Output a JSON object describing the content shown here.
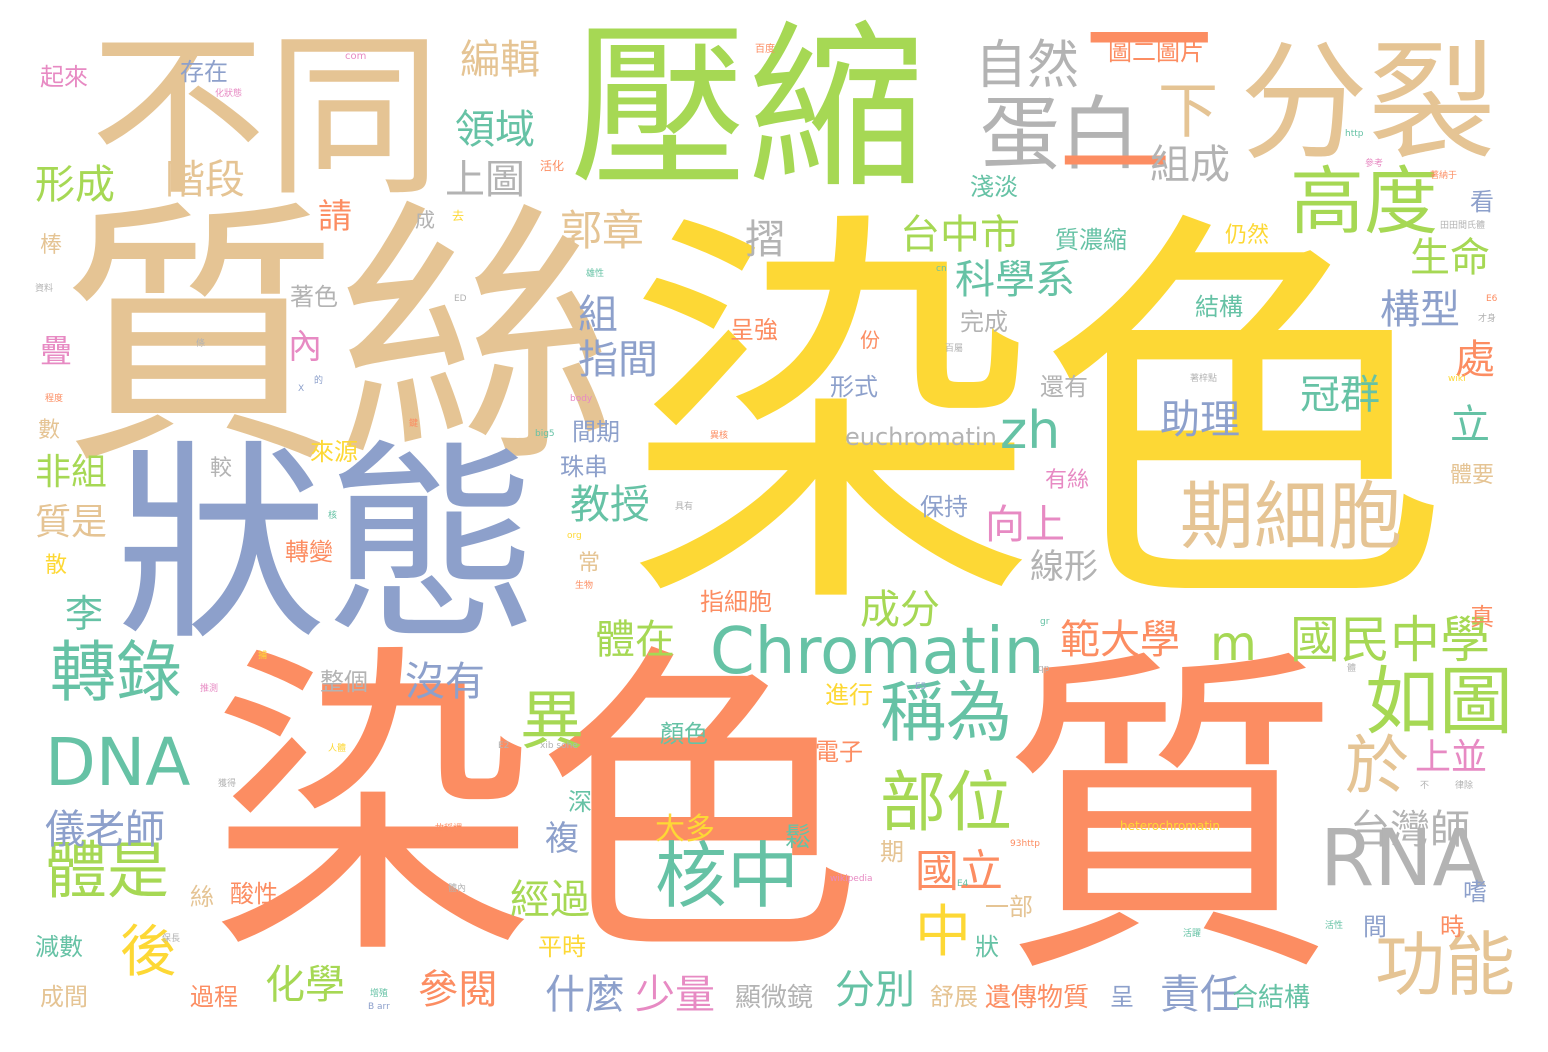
{
  "palette": {
    "yellow": "#fdd835",
    "orange": "#fc8d62",
    "tan": "#e5c494",
    "green": "#a6d854",
    "blue": "#8da0cb",
    "teal": "#66c2a5",
    "pink": "#e78ac3",
    "gray": "#b3b3b3"
  },
  "words": [
    {
      "text": "染色"
    },
    {
      "text": "質絲"
    },
    {
      "text": "染色"
    },
    {
      "text": "質"
    },
    {
      "text": "壓縮"
    },
    {
      "text": "狀態"
    },
    {
      "text": "不同"
    },
    {
      "text": "分裂"
    },
    {
      "text": "蛋白"
    },
    {
      "text": "自然"
    },
    {
      "text": "一"
    },
    {
      "text": "一"
    },
    {
      "text": "下"
    },
    {
      "text": "高度"
    },
    {
      "text": "期細胞"
    },
    {
      "text": "Chromatin"
    },
    {
      "text": "m"
    },
    {
      "text": "國民中學"
    },
    {
      "text": "RNA"
    },
    {
      "text": "如圖"
    },
    {
      "text": "DNA"
    },
    {
      "text": "轉錄"
    },
    {
      "text": "稱為"
    },
    {
      "text": "部位"
    },
    {
      "text": "核中"
    },
    {
      "text": "功能"
    },
    {
      "text": "體是"
    },
    {
      "text": "異"
    },
    {
      "text": "於"
    },
    {
      "text": "zh"
    },
    {
      "text": "台中市"
    },
    {
      "text": "科學系"
    },
    {
      "text": "郭章"
    },
    {
      "text": "領域"
    },
    {
      "text": "編輯"
    },
    {
      "text": "上圖"
    },
    {
      "text": "組成"
    },
    {
      "text": "形成"
    },
    {
      "text": "階段"
    },
    {
      "text": "教授"
    },
    {
      "text": "助理"
    },
    {
      "text": "冠群"
    },
    {
      "text": "立"
    },
    {
      "text": "生命"
    },
    {
      "text": "構型"
    },
    {
      "text": "處"
    },
    {
      "text": "向上"
    },
    {
      "text": "範大學"
    },
    {
      "text": "成分"
    },
    {
      "text": "體在"
    },
    {
      "text": "沒有"
    },
    {
      "text": "儀老師"
    },
    {
      "text": "台灣師"
    },
    {
      "text": "上並"
    },
    {
      "text": "後"
    },
    {
      "text": "中"
    },
    {
      "text": "國立"
    },
    {
      "text": "化學"
    },
    {
      "text": "參閱"
    },
    {
      "text": "什麼"
    },
    {
      "text": "少量"
    },
    {
      "text": "分別"
    },
    {
      "text": "責任"
    },
    {
      "text": "經過"
    },
    {
      "text": "euchromatin"
    },
    {
      "text": "指間"
    },
    {
      "text": "組"
    },
    {
      "text": "摺"
    },
    {
      "text": "淺淡"
    },
    {
      "text": "質濃縮"
    },
    {
      "text": "結構"
    },
    {
      "text": "非組"
    },
    {
      "text": "質是"
    },
    {
      "text": "李"
    },
    {
      "text": "請"
    },
    {
      "text": "內"
    },
    {
      "text": "疊"
    },
    {
      "text": "存在"
    },
    {
      "text": "起來"
    },
    {
      "text": "圖二圖片"
    },
    {
      "text": "顯微鏡"
    },
    {
      "text": "遺傳物質"
    },
    {
      "text": "合結構"
    },
    {
      "text": "指細胞"
    },
    {
      "text": "電子"
    },
    {
      "text": "顏色"
    },
    {
      "text": "大多"
    },
    {
      "text": "鬆"
    },
    {
      "text": "珠串"
    },
    {
      "text": "間期"
    },
    {
      "text": "呈強"
    },
    {
      "text": "形式"
    },
    {
      "text": "完成"
    },
    {
      "text": "還有"
    },
    {
      "text": "保持"
    },
    {
      "text": "來源"
    },
    {
      "text": "轉變"
    },
    {
      "text": "著色"
    },
    {
      "text": "整個"
    },
    {
      "text": "進行"
    },
    {
      "text": "複"
    },
    {
      "text": "線形"
    },
    {
      "text": "平時"
    },
    {
      "text": "深"
    },
    {
      "text": "過程"
    },
    {
      "text": "減數"
    },
    {
      "text": "成間"
    },
    {
      "text": "舒展"
    },
    {
      "text": "呈"
    },
    {
      "text": "狀"
    },
    {
      "text": "一部"
    },
    {
      "text": "期"
    },
    {
      "text": "酸性"
    },
    {
      "text": "絲"
    },
    {
      "text": "間"
    },
    {
      "text": "時"
    },
    {
      "text": "嗜"
    },
    {
      "text": "仍然"
    },
    {
      "text": "看"
    },
    {
      "text": "有絲"
    },
    {
      "text": "體要"
    },
    {
      "text": "真"
    },
    {
      "text": "散"
    },
    {
      "text": "數"
    },
    {
      "text": "棒"
    },
    {
      "text": "常"
    },
    {
      "text": "較"
    },
    {
      "text": "份"
    },
    {
      "text": "成"
    },
    {
      "text": "heterochromatin"
    },
    {
      "text": "去"
    },
    {
      "text": "活化"
    },
    {
      "text": "com"
    },
    {
      "text": "百度"
    },
    {
      "text": "http"
    },
    {
      "text": "參考"
    },
    {
      "text": "著納于"
    },
    {
      "text": "田田間氏體"
    },
    {
      "text": "才身"
    },
    {
      "text": "E6"
    },
    {
      "text": "著梓點"
    },
    {
      "text": "wiki"
    },
    {
      "text": "cn"
    },
    {
      "text": "ED"
    },
    {
      "text": "具有"
    },
    {
      "text": "異核"
    },
    {
      "text": "body"
    },
    {
      "text": "big5"
    },
    {
      "text": "程度"
    },
    {
      "text": "資料"
    },
    {
      "text": "推測"
    },
    {
      "text": "人體"
    },
    {
      "text": "獲得"
    },
    {
      "text": "故稱謂"
    },
    {
      "text": "體內"
    },
    {
      "text": "增殖"
    },
    {
      "text": "保長"
    },
    {
      "text": "B arr"
    },
    {
      "text": "93http"
    },
    {
      "text": "wikipedia"
    },
    {
      "text": "E4"
    },
    {
      "text": "活性"
    },
    {
      "text": "活躍"
    },
    {
      "text": "不"
    },
    {
      "text": "律除"
    },
    {
      "text": "體"
    },
    {
      "text": "E5"
    },
    {
      "text": "E2"
    },
    {
      "text": "xib sohe"
    },
    {
      "text": "生物"
    },
    {
      "text": "org"
    },
    {
      "text": "核"
    },
    {
      "text": "化狀態"
    },
    {
      "text": "X"
    },
    {
      "text": "的"
    },
    {
      "text": "雄性"
    },
    {
      "text": "百屬"
    },
    {
      "text": "qp"
    },
    {
      "text": "gr"
    },
    {
      "text": "捕"
    },
    {
      "text": "條"
    },
    {
      "text": "鍵"
    }
  ]
}
